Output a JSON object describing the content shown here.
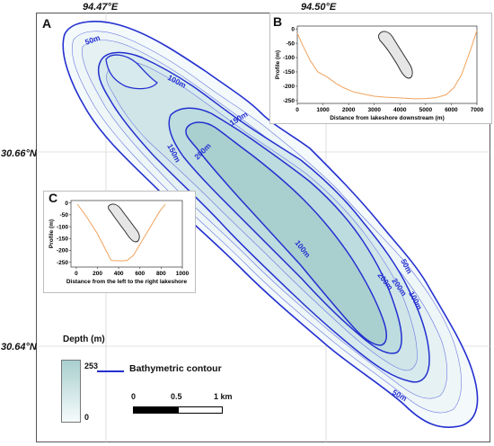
{
  "coordinates": {
    "lon_labels": [
      "94.47°E",
      "94.50°E"
    ],
    "lat_labels": [
      "30.66°N",
      "30.64°N"
    ]
  },
  "panels": {
    "a": "A",
    "b": "B",
    "c": "C"
  },
  "contour_labels": [
    "50m",
    "100m",
    "150m",
    "200m",
    "150m",
    "200m",
    "100m",
    "200m",
    "50m",
    "100m",
    "50m"
  ],
  "inset_b": {
    "xlabel": "Distance from lakeshore downstream (m)",
    "ylabel": "Profile (m)",
    "x_ticks": [
      "0",
      "1000",
      "2000",
      "3000",
      "4000",
      "5000",
      "6000",
      "7000"
    ],
    "y_ticks": [
      "0",
      "-50",
      "-100",
      "-150",
      "-200",
      "-250"
    ],
    "line_color": "#f0a35e",
    "profile": {
      "x": [
        0,
        200,
        500,
        800,
        1000,
        1200,
        1500,
        1800,
        2200,
        2600,
        3000,
        3400,
        3800,
        4200,
        4600,
        5000,
        5400,
        5800,
        6100,
        6400,
        6600,
        6800,
        7000
      ],
      "y": [
        -15,
        -55,
        -110,
        -150,
        -160,
        -170,
        -190,
        -205,
        -220,
        -228,
        -235,
        -238,
        -240,
        -242,
        -244,
        -243,
        -240,
        -230,
        -205,
        -160,
        -110,
        -60,
        -5
      ]
    }
  },
  "inset_c": {
    "xlabel": "Distance from the left to the right lakeshore",
    "ylabel": "Profile (m)",
    "x_ticks": [
      "0",
      "200",
      "400",
      "600",
      "800",
      "1000"
    ],
    "y_ticks": [
      "0",
      "-50",
      "-100",
      "-150",
      "-200",
      "-250"
    ],
    "line_color": "#f0a35e",
    "profile": {
      "x": [
        10,
        100,
        200,
        280,
        330,
        420,
        480,
        540,
        620,
        700,
        780,
        840
      ],
      "y": [
        -5,
        -60,
        -130,
        -200,
        -242,
        -244,
        -242,
        -220,
        -160,
        -100,
        -40,
        -5
      ]
    }
  },
  "legend": {
    "title": "Depth (m)",
    "max": "253",
    "min": "0",
    "contour_label": "Bathymetric contour",
    "colors": {
      "deep": "#a9cfcf",
      "shallow": "#f6fbfc",
      "contour": "#2430d0"
    }
  },
  "scalebar": {
    "labels": [
      "0",
      "0.5",
      "1 km"
    ]
  }
}
